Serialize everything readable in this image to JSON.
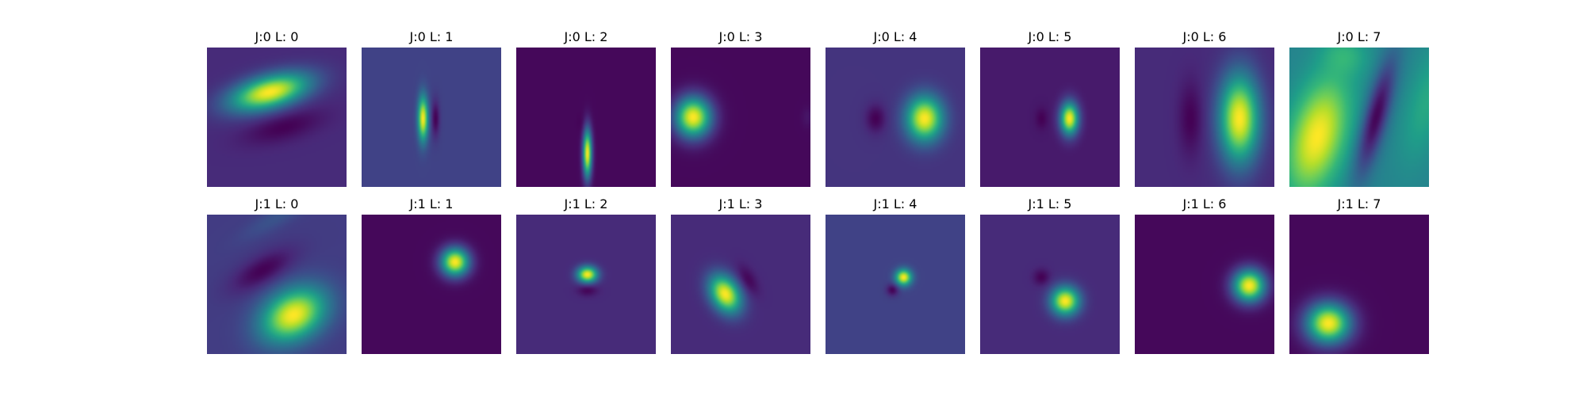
{
  "chart_data": {
    "type": "heatmap",
    "colormap": "viridis",
    "colormap_stops": [
      "#440154",
      "#482878",
      "#3e4989",
      "#31688e",
      "#26828e",
      "#1f9e89",
      "#35b779",
      "#6ece58",
      "#b5de2b",
      "#fde725"
    ],
    "layout": {
      "rows": 2,
      "cols": 8
    },
    "panels": [
      {
        "title": "J:0 L: 0",
        "background": 0.12,
        "blobs": [
          {
            "cx": 0.45,
            "cy": 0.32,
            "sx": 0.2,
            "sy": 0.08,
            "angle": -15,
            "amp": 0.88
          },
          {
            "cx": 0.55,
            "cy": 0.57,
            "sx": 0.2,
            "sy": 0.07,
            "angle": -15,
            "amp": -0.12
          }
        ]
      },
      {
        "title": "J:0 L: 1",
        "background": 0.2,
        "blobs": [
          {
            "cx": 0.44,
            "cy": 0.51,
            "sx": 0.025,
            "sy": 0.11,
            "angle": 0,
            "amp": 0.8
          },
          {
            "cx": 0.53,
            "cy": 0.51,
            "sx": 0.02,
            "sy": 0.09,
            "angle": 0,
            "amp": -0.2
          }
        ]
      },
      {
        "title": "J:0 L: 2",
        "background": 0.02,
        "blobs": [
          {
            "cx": 0.51,
            "cy": 0.76,
            "sx": 0.022,
            "sy": 0.12,
            "angle": 0,
            "amp": 0.98
          },
          {
            "cx": 0.47,
            "cy": 0.55,
            "sx": 0.02,
            "sy": 0.05,
            "angle": 0,
            "amp": -0.02
          }
        ]
      },
      {
        "title": "J:0 L: 3",
        "background": 0.02,
        "blobs": [
          {
            "cx": 0.16,
            "cy": 0.5,
            "sx": 0.09,
            "sy": 0.1,
            "angle": 0,
            "amp": 0.98
          },
          {
            "cx": 0.98,
            "cy": 0.5,
            "sx": 0.03,
            "sy": 0.05,
            "angle": 0,
            "amp": 0.04
          }
        ]
      },
      {
        "title": "J:0 L: 4",
        "background": 0.15,
        "blobs": [
          {
            "cx": 0.71,
            "cy": 0.51,
            "sx": 0.09,
            "sy": 0.11,
            "angle": 0,
            "amp": 0.85
          },
          {
            "cx": 0.36,
            "cy": 0.51,
            "sx": 0.05,
            "sy": 0.07,
            "angle": 0,
            "amp": -0.15
          }
        ]
      },
      {
        "title": "J:0 L: 5",
        "background": 0.07,
        "blobs": [
          {
            "cx": 0.64,
            "cy": 0.51,
            "sx": 0.045,
            "sy": 0.08,
            "angle": 0,
            "amp": 0.93
          },
          {
            "cx": 0.44,
            "cy": 0.51,
            "sx": 0.03,
            "sy": 0.05,
            "angle": 0,
            "amp": -0.07
          }
        ]
      },
      {
        "title": "J:0 L: 6",
        "background": 0.12,
        "blobs": [
          {
            "cx": 0.75,
            "cy": 0.51,
            "sx": 0.1,
            "sy": 0.22,
            "angle": 0,
            "amp": 0.88
          },
          {
            "cx": 0.4,
            "cy": 0.51,
            "sx": 0.06,
            "sy": 0.18,
            "angle": 0,
            "amp": -0.12
          }
        ]
      },
      {
        "title": "J:0 L: 7",
        "background": 0.45,
        "blobs": [
          {
            "cx": 0.2,
            "cy": 0.64,
            "sx": 0.14,
            "sy": 0.3,
            "angle": 15,
            "amp": 0.55
          },
          {
            "cx": 0.62,
            "cy": 0.5,
            "sx": 0.06,
            "sy": 0.3,
            "angle": 15,
            "amp": -0.45
          },
          {
            "cx": 0.98,
            "cy": 0.4,
            "sx": 0.1,
            "sy": 0.3,
            "angle": 15,
            "amp": 0.15
          },
          {
            "cx": 0.4,
            "cy": 0.05,
            "sx": 0.12,
            "sy": 0.1,
            "angle": 15,
            "amp": 0.15
          }
        ]
      },
      {
        "title": "J:1 L: 0",
        "background": 0.18,
        "blobs": [
          {
            "cx": 0.62,
            "cy": 0.72,
            "sx": 0.17,
            "sy": 0.12,
            "angle": -30,
            "amp": 0.82
          },
          {
            "cx": 0.4,
            "cy": 0.4,
            "sx": 0.17,
            "sy": 0.07,
            "angle": -30,
            "amp": -0.18
          },
          {
            "cx": 0.5,
            "cy": 0.02,
            "sx": 0.2,
            "sy": 0.05,
            "angle": -30,
            "amp": 0.08
          }
        ]
      },
      {
        "title": "J:1 L: 1",
        "background": 0.02,
        "blobs": [
          {
            "cx": 0.67,
            "cy": 0.34,
            "sx": 0.07,
            "sy": 0.07,
            "angle": 0,
            "amp": 0.98
          }
        ]
      },
      {
        "title": "J:1 L: 2",
        "background": 0.12,
        "blobs": [
          {
            "cx": 0.51,
            "cy": 0.43,
            "sx": 0.05,
            "sy": 0.04,
            "angle": 0,
            "amp": 0.88
          },
          {
            "cx": 0.51,
            "cy": 0.54,
            "sx": 0.05,
            "sy": 0.03,
            "angle": 0,
            "amp": -0.12
          }
        ]
      },
      {
        "title": "J:1 L: 3",
        "background": 0.12,
        "blobs": [
          {
            "cx": 0.39,
            "cy": 0.57,
            "sx": 0.07,
            "sy": 0.1,
            "angle": -30,
            "amp": 0.88
          },
          {
            "cx": 0.55,
            "cy": 0.47,
            "sx": 0.04,
            "sy": 0.08,
            "angle": -30,
            "amp": -0.12
          }
        ]
      },
      {
        "title": "J:1 L: 4",
        "background": 0.2,
        "blobs": [
          {
            "cx": 0.56,
            "cy": 0.45,
            "sx": 0.04,
            "sy": 0.04,
            "angle": 0,
            "amp": 0.8
          },
          {
            "cx": 0.48,
            "cy": 0.54,
            "sx": 0.03,
            "sy": 0.03,
            "angle": 0,
            "amp": -0.2
          }
        ]
      },
      {
        "title": "J:1 L: 5",
        "background": 0.12,
        "blobs": [
          {
            "cx": 0.61,
            "cy": 0.62,
            "sx": 0.07,
            "sy": 0.07,
            "angle": 0,
            "amp": 0.88
          },
          {
            "cx": 0.44,
            "cy": 0.45,
            "sx": 0.04,
            "sy": 0.04,
            "angle": 0,
            "amp": -0.12
          }
        ]
      },
      {
        "title": "J:1 L: 6",
        "background": 0.02,
        "blobs": [
          {
            "cx": 0.82,
            "cy": 0.51,
            "sx": 0.08,
            "sy": 0.08,
            "angle": 0,
            "amp": 0.98
          }
        ]
      },
      {
        "title": "J:1 L: 7",
        "background": 0.02,
        "blobs": [
          {
            "cx": 0.28,
            "cy": 0.78,
            "sx": 0.11,
            "sy": 0.1,
            "angle": 0,
            "amp": 0.98
          }
        ]
      }
    ]
  }
}
